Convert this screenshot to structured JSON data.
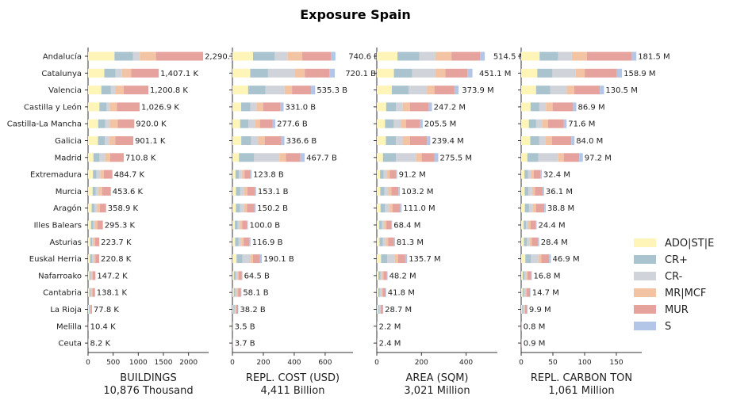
{
  "chart_data": {
    "type": "bar",
    "title": "Exposure Spain",
    "categories": [
      "Andalucía",
      "Catalunya",
      "Valencia",
      "Castilla y León",
      "Castilla-La Mancha",
      "Galicia",
      "Madrid",
      "Extremadura",
      "Murcia",
      "Aragón",
      "Illes Balears",
      "Asturias",
      "Euskal Herria",
      "Nafarroako",
      "Cantabria",
      "La Rioja",
      "Melilla",
      "Ceuta"
    ],
    "legend": {
      "position": "right",
      "entries": [
        {
          "name": "ADO|ST|E",
          "color": "#fff5b8"
        },
        {
          "name": "CR+",
          "color": "#a9c4cf"
        },
        {
          "name": "CR-",
          "color": "#d0d3d9"
        },
        {
          "name": "MR|MCF",
          "color": "#f3c4a4"
        },
        {
          "name": "MUR",
          "color": "#e6a39e"
        },
        {
          "name": "S",
          "color": "#b3c6e7"
        }
      ]
    },
    "panels": [
      {
        "xlabel": "BUILDINGS",
        "subtitle": "10,876 Thousand",
        "xlim": [
          0,
          2400
        ],
        "xticks": [
          0,
          500,
          1000,
          1500,
          2000
        ],
        "totals": [
          2290.7,
          1407.1,
          1200.8,
          1026.9,
          920.0,
          901.1,
          710.8,
          484.7,
          453.6,
          358.9,
          295.3,
          223.7,
          220.8,
          147.2,
          138.1,
          77.8,
          10.4,
          8.2
        ],
        "total_labels": [
          "2,290.7 K",
          "1,407.1 K",
          "1,200.8 K",
          "1,026.9 K",
          "920.0 K",
          "901.1 K",
          "710.8 K",
          "484.7 K",
          "453.6 K",
          "358.9 K",
          "295.3 K",
          "223.7 K",
          "220.8 K",
          "147.2 K",
          "138.1 K",
          "77.8 K",
          "10.4 K",
          "8.2 K"
        ],
        "shares": [
          [
            0.23,
            0.16,
            0.06,
            0.14,
            0.41,
            0.0
          ],
          [
            0.23,
            0.16,
            0.09,
            0.13,
            0.39,
            0.0
          ],
          [
            0.22,
            0.16,
            0.08,
            0.13,
            0.41,
            0.0
          ],
          [
            0.22,
            0.14,
            0.06,
            0.14,
            0.44,
            0.0
          ],
          [
            0.22,
            0.15,
            0.1,
            0.17,
            0.36,
            0.0
          ],
          [
            0.22,
            0.15,
            0.1,
            0.13,
            0.4,
            0.0
          ],
          [
            0.15,
            0.17,
            0.16,
            0.14,
            0.38,
            0.0
          ],
          [
            0.2,
            0.15,
            0.15,
            0.15,
            0.35,
            0.0
          ],
          [
            0.2,
            0.14,
            0.12,
            0.16,
            0.38,
            0.0
          ],
          [
            0.2,
            0.15,
            0.15,
            0.15,
            0.35,
            0.0
          ],
          [
            0.2,
            0.16,
            0.12,
            0.16,
            0.36,
            0.0
          ],
          [
            0.2,
            0.16,
            0.1,
            0.16,
            0.38,
            0.0
          ],
          [
            0.18,
            0.18,
            0.18,
            0.12,
            0.34,
            0.0
          ],
          [
            0.18,
            0.16,
            0.14,
            0.14,
            0.38,
            0.0
          ],
          [
            0.18,
            0.16,
            0.14,
            0.16,
            0.36,
            0.0
          ],
          [
            0.18,
            0.18,
            0.14,
            0.14,
            0.36,
            0.0
          ],
          [
            0.18,
            0.16,
            0.16,
            0.16,
            0.34,
            0.0
          ],
          [
            0.18,
            0.16,
            0.16,
            0.16,
            0.34,
            0.0
          ]
        ]
      },
      {
        "xlabel": "REPL. COST (USD)",
        "subtitle": "4,411 Billion",
        "xlim": [
          0,
          780
        ],
        "xticks": [
          0,
          200,
          400,
          600
        ],
        "totals": [
          740.6,
          720.1,
          535.3,
          331.0,
          277.6,
          336.6,
          467.7,
          123.8,
          153.1,
          150.2,
          100.0,
          116.9,
          190.1,
          64.5,
          58.1,
          38.2,
          3.5,
          3.7
        ],
        "total_labels": [
          "740.6 B",
          "720.1 B",
          "535.3 B",
          "331.0 B",
          "277.6 B",
          "336.6 B",
          "467.7 B",
          "123.8 B",
          "153.1 B",
          "150.2 B",
          "100.0 B",
          "116.9 B",
          "190.1 B",
          "64.5 B",
          "58.1 B",
          "38.2 B",
          "3.5 B",
          "3.7 B"
        ],
        "shares": [
          [
            0.18,
            0.19,
            0.11,
            0.13,
            0.25,
            0.04
          ],
          [
            0.16,
            0.16,
            0.24,
            0.09,
            0.22,
            0.05
          ],
          [
            0.19,
            0.21,
            0.23,
            0.09,
            0.23,
            0.05
          ],
          [
            0.17,
            0.18,
            0.12,
            0.13,
            0.34,
            0.06
          ],
          [
            0.18,
            0.19,
            0.15,
            0.12,
            0.3,
            0.06
          ],
          [
            0.17,
            0.19,
            0.13,
            0.13,
            0.32,
            0.06
          ],
          [
            0.09,
            0.21,
            0.35,
            0.09,
            0.2,
            0.06
          ],
          [
            0.16,
            0.18,
            0.15,
            0.14,
            0.31,
            0.06
          ],
          [
            0.15,
            0.18,
            0.17,
            0.13,
            0.31,
            0.06
          ],
          [
            0.15,
            0.18,
            0.17,
            0.13,
            0.31,
            0.06
          ],
          [
            0.16,
            0.17,
            0.15,
            0.15,
            0.31,
            0.06
          ],
          [
            0.15,
            0.18,
            0.16,
            0.13,
            0.32,
            0.06
          ],
          [
            0.14,
            0.2,
            0.26,
            0.1,
            0.24,
            0.06
          ],
          [
            0.15,
            0.18,
            0.16,
            0.14,
            0.31,
            0.06
          ],
          [
            0.15,
            0.18,
            0.16,
            0.14,
            0.31,
            0.06
          ],
          [
            0.15,
            0.18,
            0.17,
            0.13,
            0.31,
            0.06
          ],
          [
            0.17,
            0.17,
            0.17,
            0.16,
            0.27,
            0.06
          ],
          [
            0.17,
            0.17,
            0.17,
            0.16,
            0.27,
            0.06
          ]
        ]
      },
      {
        "xlabel": "AREA (SQM)",
        "subtitle": "3,021 Million",
        "xlim": [
          0,
          540
        ],
        "xticks": [
          0,
          200,
          400
        ],
        "totals": [
          514.5,
          451.1,
          373.9,
          247.2,
          205.5,
          239.4,
          275.5,
          91.2,
          103.2,
          111.0,
          68.4,
          81.3,
          135.7,
          48.2,
          41.8,
          28.7,
          2.2,
          2.4
        ],
        "total_labels": [
          "514.5 M",
          "451.1 M",
          "373.9 M",
          "247.2 M",
          "205.5 M",
          "239.4 M",
          "275.5 M",
          "91.2 M",
          "103.2 M",
          "111.0 M",
          "68.4 M",
          "81.3 M",
          "135.7 M",
          "48.2 M",
          "41.8 M",
          "28.7 M",
          "2.2 M",
          "2.4 M"
        ],
        "shares": [
          [
            0.18,
            0.19,
            0.14,
            0.14,
            0.25,
            0.04
          ],
          [
            0.17,
            0.18,
            0.23,
            0.1,
            0.22,
            0.05
          ],
          [
            0.18,
            0.2,
            0.22,
            0.09,
            0.24,
            0.05
          ],
          [
            0.17,
            0.18,
            0.12,
            0.13,
            0.34,
            0.06
          ],
          [
            0.18,
            0.19,
            0.15,
            0.12,
            0.3,
            0.06
          ],
          [
            0.17,
            0.19,
            0.13,
            0.13,
            0.32,
            0.06
          ],
          [
            0.1,
            0.21,
            0.33,
            0.09,
            0.21,
            0.06
          ],
          [
            0.16,
            0.18,
            0.15,
            0.14,
            0.31,
            0.06
          ],
          [
            0.15,
            0.18,
            0.17,
            0.13,
            0.31,
            0.06
          ],
          [
            0.15,
            0.18,
            0.17,
            0.13,
            0.31,
            0.06
          ],
          [
            0.16,
            0.17,
            0.15,
            0.15,
            0.31,
            0.06
          ],
          [
            0.15,
            0.18,
            0.16,
            0.13,
            0.32,
            0.06
          ],
          [
            0.14,
            0.2,
            0.26,
            0.1,
            0.24,
            0.06
          ],
          [
            0.15,
            0.18,
            0.16,
            0.14,
            0.31,
            0.06
          ],
          [
            0.15,
            0.18,
            0.16,
            0.14,
            0.31,
            0.06
          ],
          [
            0.15,
            0.18,
            0.17,
            0.13,
            0.31,
            0.06
          ],
          [
            0.17,
            0.17,
            0.17,
            0.16,
            0.27,
            0.06
          ],
          [
            0.17,
            0.17,
            0.17,
            0.16,
            0.27,
            0.06
          ]
        ]
      },
      {
        "xlabel": "REPL. CARBON TON",
        "subtitle": "1,061 Million",
        "xlim": [
          0,
          190
        ],
        "xticks": [
          0,
          50,
          100,
          150
        ],
        "totals": [
          181.5,
          158.9,
          130.5,
          86.9,
          71.6,
          84.0,
          97.2,
          32.4,
          36.1,
          38.8,
          24.4,
          28.4,
          46.9,
          16.8,
          14.7,
          9.9,
          0.8,
          0.9
        ],
        "total_labels": [
          "181.5 M",
          "158.9 M",
          "130.5 M",
          "86.9 M",
          "71.6 M",
          "84.0 M",
          "97.2 M",
          "32.4 M",
          "36.1 M",
          "38.8 M",
          "24.4 M",
          "28.4 M",
          "46.9 M",
          "16.8 M",
          "14.7 M",
          "9.9 M",
          "0.8 M",
          "0.9 M"
        ],
        "shares": [
          [
            0.16,
            0.16,
            0.12,
            0.13,
            0.39,
            0.04
          ],
          [
            0.16,
            0.15,
            0.23,
            0.09,
            0.32,
            0.05
          ],
          [
            0.18,
            0.17,
            0.2,
            0.09,
            0.31,
            0.05
          ],
          [
            0.17,
            0.16,
            0.12,
            0.12,
            0.37,
            0.06
          ],
          [
            0.17,
            0.16,
            0.14,
            0.12,
            0.35,
            0.06
          ],
          [
            0.17,
            0.17,
            0.12,
            0.12,
            0.36,
            0.06
          ],
          [
            0.1,
            0.18,
            0.32,
            0.09,
            0.25,
            0.06
          ],
          [
            0.16,
            0.17,
            0.15,
            0.13,
            0.33,
            0.06
          ],
          [
            0.15,
            0.17,
            0.16,
            0.12,
            0.34,
            0.06
          ],
          [
            0.15,
            0.17,
            0.16,
            0.12,
            0.34,
            0.06
          ],
          [
            0.16,
            0.16,
            0.14,
            0.14,
            0.34,
            0.06
          ],
          [
            0.15,
            0.17,
            0.15,
            0.12,
            0.35,
            0.06
          ],
          [
            0.14,
            0.19,
            0.25,
            0.1,
            0.26,
            0.06
          ],
          [
            0.15,
            0.17,
            0.15,
            0.13,
            0.34,
            0.06
          ],
          [
            0.15,
            0.17,
            0.15,
            0.13,
            0.34,
            0.06
          ],
          [
            0.15,
            0.17,
            0.16,
            0.12,
            0.34,
            0.06
          ],
          [
            0.17,
            0.17,
            0.17,
            0.15,
            0.28,
            0.06
          ],
          [
            0.17,
            0.17,
            0.17,
            0.15,
            0.28,
            0.06
          ]
        ]
      }
    ]
  }
}
